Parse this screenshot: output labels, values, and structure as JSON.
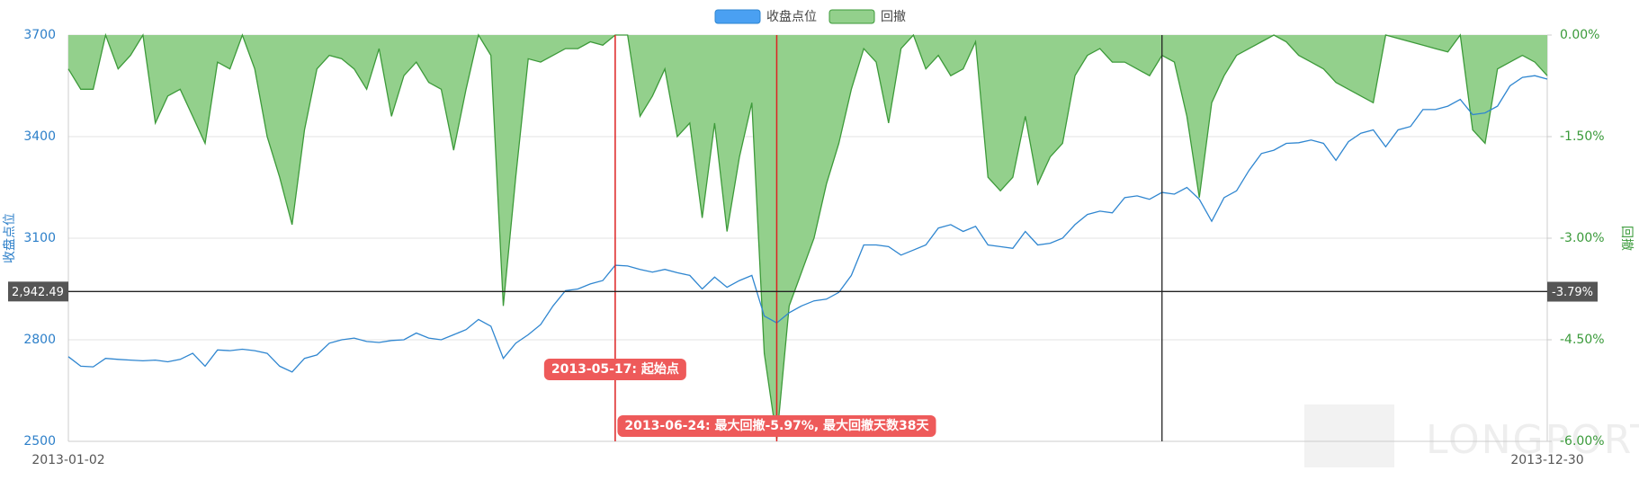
{
  "chart_data": {
    "type": "line",
    "legend_position": "top",
    "grid": true,
    "categories": [
      "2013-01-02",
      null,
      null,
      null,
      null,
      null,
      null,
      null,
      null,
      null,
      null,
      null,
      null,
      null,
      null,
      null,
      null,
      null,
      null,
      null,
      null,
      null,
      null,
      null,
      null,
      null,
      null,
      null,
      null,
      null,
      null,
      null,
      null,
      null,
      null,
      null,
      null,
      null,
      null,
      null,
      null,
      null,
      null,
      null,
      null,
      null,
      null,
      null,
      null,
      null,
      null,
      null,
      null,
      null,
      null,
      null,
      null,
      null,
      null,
      null,
      null,
      null,
      null,
      null,
      null,
      null,
      null,
      null,
      null,
      null,
      null,
      null,
      null,
      null,
      null,
      null,
      null,
      null,
      null,
      null,
      null,
      null,
      null,
      null,
      null,
      null,
      null,
      null,
      null,
      null,
      null,
      null,
      null,
      null,
      null,
      null,
      null,
      null,
      null,
      null,
      null,
      null,
      null,
      null,
      null,
      null,
      null,
      null,
      null,
      null,
      null,
      null,
      null,
      null,
      null,
      null,
      null,
      null,
      null,
      "2013-12-30"
    ],
    "series": [
      {
        "name": "收盘点位",
        "color": "#4aa0f2",
        "line_color": "#2f86d0",
        "axis": "y",
        "values": [
          2750,
          2722,
          2720,
          2745,
          2742,
          2740,
          2738,
          2740,
          2735,
          2742,
          2760,
          2722,
          2770,
          2768,
          2772,
          2768,
          2760,
          2722,
          2705,
          2745,
          2755,
          2790,
          2800,
          2805,
          2795,
          2792,
          2798,
          2800,
          2820,
          2805,
          2800,
          2815,
          2830,
          2860,
          2840,
          2745,
          2790,
          2815,
          2845,
          2900,
          2945,
          2950,
          2965,
          2975,
          3020,
          3018,
          3008,
          3000,
          3008,
          2998,
          2990,
          2950,
          2985,
          2955,
          2975,
          2990,
          2870,
          2850,
          2880,
          2900,
          2915,
          2920,
          2940,
          2990,
          3080,
          3080,
          3075,
          3050,
          3065,
          3080,
          3130,
          3140,
          3120,
          3135,
          3080,
          3075,
          3070,
          3120,
          3080,
          3085,
          3100,
          3140,
          3170,
          3180,
          3175,
          3220,
          3225,
          3215,
          3235,
          3230,
          3250,
          3215,
          3150,
          3220,
          3240,
          3300,
          3350,
          3360,
          3380,
          3382,
          3390,
          3380,
          3330,
          3385,
          3410,
          3420,
          3370,
          3420,
          3430,
          3480,
          3480,
          3490,
          3510,
          3465,
          3470,
          3490,
          3550,
          3575,
          3580,
          3570
        ]
      },
      {
        "name": "回撤",
        "color": "#93d08c",
        "line_color": "#3d9a3a",
        "axis": "y2",
        "values": [
          -0.5,
          -0.8,
          -0.8,
          0,
          -0.5,
          -0.3,
          0,
          -1.3,
          -0.9,
          -0.8,
          -1.2,
          -1.6,
          -0.4,
          -0.5,
          0,
          -0.5,
          -1.5,
          -2.1,
          -2.8,
          -1.4,
          -0.5,
          -0.3,
          -0.35,
          -0.5,
          -0.8,
          -0.2,
          -1.2,
          -0.6,
          -0.4,
          -0.7,
          -0.8,
          -1.7,
          -0.8,
          0,
          -0.3,
          -4.0,
          -2.1,
          -0.35,
          -0.4,
          -0.3,
          -0.2,
          -0.2,
          -0.1,
          -0.15,
          0,
          0,
          -1.2,
          -0.9,
          -0.5,
          -1.5,
          -1.3,
          -2.7,
          -1.3,
          -2.9,
          -1.8,
          -1.0,
          -4.7,
          -5.97,
          -4.0,
          -3.5,
          -3.0,
          -2.2,
          -1.6,
          -0.8,
          -0.2,
          -0.4,
          -1.3,
          -0.2,
          0,
          -0.5,
          -0.3,
          -0.6,
          -0.5,
          -0.1,
          -2.1,
          -2.3,
          -2.1,
          -1.2,
          -2.2,
          -1.8,
          -1.6,
          -0.6,
          -0.3,
          -0.2,
          -0.4,
          -0.4,
          -0.5,
          -0.6,
          -0.3,
          -0.4,
          -1.2,
          -2.4,
          -1.0,
          -0.6,
          -0.3,
          -0.2,
          -0.1,
          0,
          -0.1,
          -0.3,
          -0.4,
          -0.5,
          -0.7,
          -0.8,
          -0.9,
          -1.0,
          0,
          -0.05,
          -0.1,
          -0.15,
          -0.2,
          -0.25,
          0,
          -1.4,
          -1.6,
          -0.5,
          -0.4,
          -0.3,
          -0.4,
          -0.6
        ]
      }
    ],
    "ylabel": "收盘点位",
    "y2label": "回撤",
    "ylim": [
      2500,
      3700
    ],
    "yticks": [
      2500,
      2800,
      3100,
      3400,
      3700
    ],
    "y2lim": [
      -6,
      0
    ],
    "y2ticks": [
      {
        "value": -6,
        "label": "-6.00%"
      },
      {
        "value": -4.5,
        "label": "-4.50%"
      },
      {
        "value": -3,
        "label": "-3.00%"
      },
      {
        "value": -1.5,
        "label": "-1.50%"
      },
      {
        "value": 0,
        "label": "0.00%"
      }
    ],
    "annotations": [
      {
        "category_index": 44,
        "label": "2013-05-17: 起始点"
      },
      {
        "category_index": 57,
        "label": "2013-06-24: 最大回撤-5.97%, 最大回撤天数38天"
      }
    ],
    "crosshair": {
      "category_index": 88,
      "y": 2942.49,
      "y_label": "2,942.49",
      "y2": -3.79,
      "y2_label": "-3.79%"
    },
    "watermark": "LONGPORT"
  }
}
